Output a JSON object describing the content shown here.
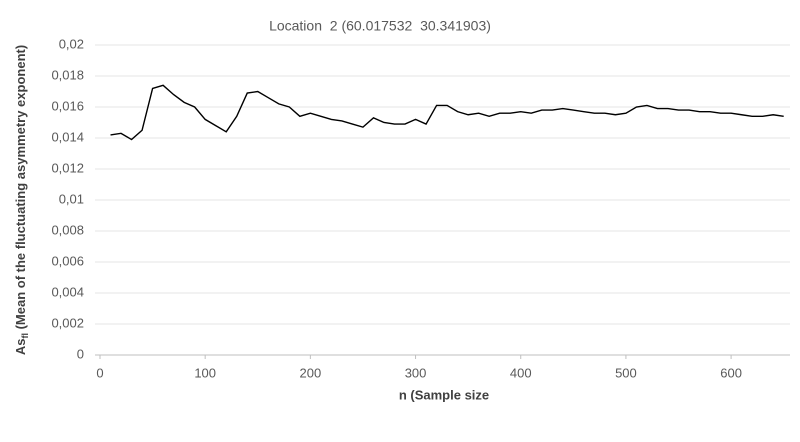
{
  "chart_data": {
    "type": "line",
    "title": "Location  2 (60.017532  30.341903)",
    "x_label": "n (Sample size",
    "y_label_main": "As",
    "y_label_sub": "fl",
    "y_label_rest": " (Mean of the fluctuating asymmetry exponent)",
    "x": [
      10,
      20,
      30,
      40,
      50,
      60,
      70,
      80,
      90,
      100,
      110,
      120,
      130,
      140,
      150,
      160,
      170,
      180,
      190,
      200,
      210,
      220,
      230,
      240,
      250,
      260,
      270,
      280,
      290,
      300,
      310,
      320,
      330,
      340,
      350,
      360,
      370,
      380,
      390,
      400,
      410,
      420,
      430,
      440,
      450,
      460,
      470,
      480,
      490,
      500,
      510,
      520,
      530,
      540,
      550,
      560,
      570,
      580,
      590,
      600,
      610,
      620,
      630,
      640,
      650
    ],
    "series": [
      {
        "name": "Location 2",
        "color": "#000000",
        "values": [
          0.0142,
          0.0143,
          0.0139,
          0.0145,
          0.0172,
          0.0174,
          0.0168,
          0.0163,
          0.016,
          0.0152,
          0.0148,
          0.0144,
          0.0154,
          0.0169,
          0.017,
          0.0166,
          0.0162,
          0.016,
          0.0154,
          0.0156,
          0.0154,
          0.0152,
          0.0151,
          0.0149,
          0.0147,
          0.0153,
          0.015,
          0.0149,
          0.0149,
          0.0152,
          0.0149,
          0.0161,
          0.0161,
          0.0157,
          0.0155,
          0.0156,
          0.0154,
          0.0156,
          0.0156,
          0.0157,
          0.0156,
          0.0158,
          0.0158,
          0.0159,
          0.0158,
          0.0157,
          0.0156,
          0.0156,
          0.0155,
          0.0156,
          0.016,
          0.0161,
          0.0159,
          0.0159,
          0.0158,
          0.0158,
          0.0157,
          0.0157,
          0.0156,
          0.0156,
          0.0155,
          0.0154,
          0.0154,
          0.0155,
          0.0154
        ]
      }
    ],
    "xlim": [
      0,
      656
    ],
    "xticks": [
      0,
      100,
      200,
      300,
      400,
      500,
      600
    ],
    "ylim": [
      0,
      0.02
    ],
    "yticks": [
      0,
      {
        "value": 0.002,
        "label": "0,002"
      },
      {
        "value": 0.004,
        "label": "0,004"
      },
      {
        "value": 0.006,
        "label": "0,006"
      },
      {
        "value": 0.008,
        "label": "0,008"
      },
      {
        "value": 0.01,
        "label": "0,01"
      },
      {
        "value": 0.012,
        "label": "0,012"
      },
      {
        "value": 0.014,
        "label": "0,014"
      },
      {
        "value": 0.016,
        "label": "0,016"
      },
      {
        "value": 0.018,
        "label": "0,018"
      },
      {
        "value": 0.02,
        "label": "0,02"
      }
    ],
    "grid": true
  }
}
